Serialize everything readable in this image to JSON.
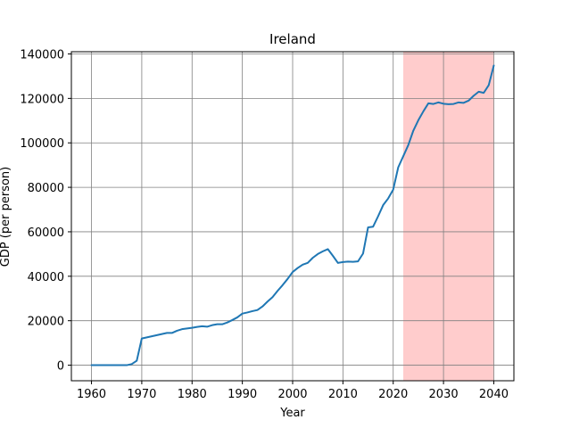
{
  "chart_data": {
    "type": "line",
    "title": "Ireland",
    "xlabel": "Year",
    "ylabel": "GDP (per person)",
    "xlim": [
      1956,
      2044
    ],
    "ylim": [
      -7000,
      141000
    ],
    "x_ticks": [
      1960,
      1970,
      1980,
      1990,
      2000,
      2010,
      2020,
      2030,
      2040
    ],
    "y_ticks": [
      0,
      20000,
      40000,
      60000,
      80000,
      100000,
      120000,
      140000
    ],
    "grid": true,
    "highlight_region": {
      "x_start": 2022,
      "x_end": 2040,
      "color": "#ffcccc"
    },
    "series": [
      {
        "color": "#1f77b4",
        "x": [
          1960,
          1961,
          1962,
          1963,
          1964,
          1965,
          1966,
          1967,
          1968,
          1969,
          1970,
          1971,
          1972,
          1973,
          1974,
          1975,
          1976,
          1977,
          1978,
          1979,
          1980,
          1981,
          1982,
          1983,
          1984,
          1985,
          1986,
          1987,
          1988,
          1989,
          1990,
          1991,
          1992,
          1993,
          1994,
          1995,
          1996,
          1997,
          1998,
          1999,
          2000,
          2001,
          2002,
          2003,
          2004,
          2005,
          2006,
          2007,
          2008,
          2009,
          2010,
          2011,
          2012,
          2013,
          2014,
          2015,
          2016,
          2017,
          2018,
          2019,
          2020,
          2021,
          2022,
          2023,
          2024,
          2025,
          2026,
          2027,
          2028,
          2029,
          2030,
          2031,
          2032,
          2033,
          2034,
          2035,
          2036,
          2037,
          2038,
          2039,
          2040
        ],
        "values": [
          0,
          0,
          0,
          0,
          0,
          0,
          0,
          0,
          500,
          2000,
          12000,
          12500,
          13000,
          13500,
          14000,
          14500,
          14500,
          15500,
          16200,
          16500,
          16800,
          17200,
          17500,
          17300,
          18000,
          18400,
          18400,
          19200,
          20300,
          21500,
          23200,
          23700,
          24300,
          24800,
          26400,
          28600,
          30600,
          33400,
          36000,
          38800,
          41900,
          43700,
          45200,
          46000,
          48300,
          50000,
          51200,
          52200,
          49200,
          46000,
          46400,
          46600,
          46500,
          46700,
          50200,
          62000,
          62300,
          67000,
          72000,
          75000,
          79000,
          89000,
          94000,
          99000,
          105500,
          110200,
          114200,
          117800,
          117500,
          118200,
          117600,
          117400,
          117500,
          118200,
          118000,
          119000,
          121200,
          123000,
          122500,
          126000,
          134800
        ]
      }
    ]
  }
}
